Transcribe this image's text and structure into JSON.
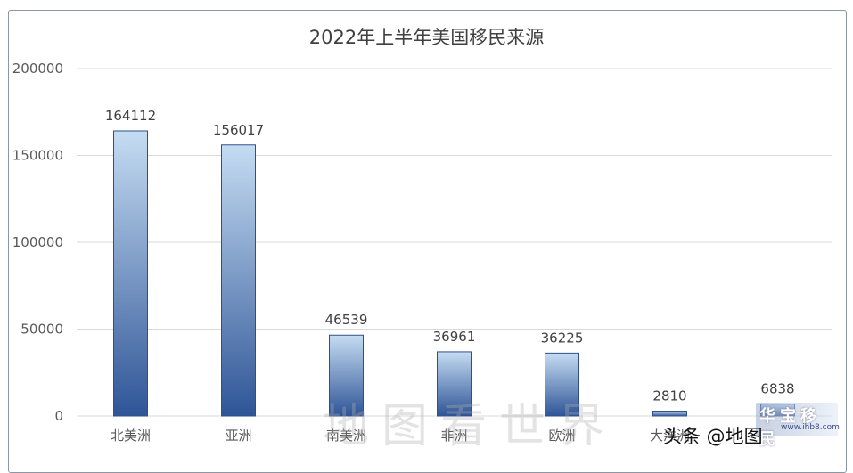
{
  "chart_data": {
    "type": "bar",
    "title": "2022年上半年美国移民来源",
    "categories": [
      "北美洲",
      "亚洲",
      "南美洲",
      "非洲",
      "欧洲",
      "大洋洲",
      ""
    ],
    "values": [
      164112,
      156017,
      46539,
      36961,
      36225,
      2810,
      6838
    ],
    "data_labels": [
      "164112",
      "156017",
      "46539",
      "36961",
      "36225",
      "2810",
      "6838"
    ],
    "y_ticks": [
      "0",
      "50000",
      "100000",
      "150000",
      "200000"
    ],
    "ylim": [
      0,
      200000
    ],
    "grid": true,
    "xlabel": "",
    "ylabel": ""
  },
  "watermark": "地图看世界",
  "credit": "头条 @地图",
  "logo": {
    "text": "华宝移民",
    "url": "www.ihb8.com"
  },
  "colors": {
    "bar_top": "#c5dcf2",
    "bar_bottom": "#2f5597",
    "grid": "#d9d9d9",
    "border": "#8c97a3"
  }
}
